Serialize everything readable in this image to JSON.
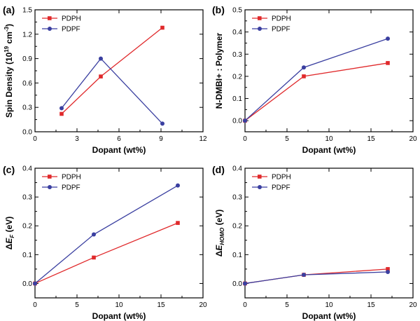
{
  "colors": {
    "PDPH": "#e0292b",
    "PDPF": "#3a3fa0",
    "axis": "#000000"
  },
  "chart_data": [
    {
      "panel": "(a)",
      "type": "line",
      "xlabel": "Dopant (wt%)",
      "ylabel": "Spin Density (10^19 cm^-3)",
      "ylabel_parts": {
        "pre": "Spin Density (10",
        "sup1": "19",
        "mid": " cm",
        "sup2": "-3",
        "post": ")"
      },
      "xlim": [
        0,
        12
      ],
      "ylim": [
        0,
        1.5
      ],
      "xticks": [
        0,
        3,
        6,
        9,
        12
      ],
      "xtick_labels": [
        "0",
        "3",
        "6",
        "9",
        "12"
      ],
      "yticks": [
        0,
        0.3,
        0.6,
        0.9,
        1.2,
        1.5
      ],
      "ytick_labels": [
        "0.0",
        "0.3",
        "0.6",
        "0.9",
        "1.2",
        "1.5"
      ],
      "legend": "top-left",
      "series": [
        {
          "name": "PDPH",
          "marker": "square",
          "x": [
            1.9,
            4.7,
            9.1
          ],
          "y": [
            0.22,
            0.68,
            1.28
          ]
        },
        {
          "name": "PDPF",
          "marker": "circle",
          "x": [
            1.9,
            4.7,
            9.1
          ],
          "y": [
            0.29,
            0.9,
            0.1
          ]
        }
      ]
    },
    {
      "panel": "(b)",
      "type": "line",
      "xlabel": "Dopant (wt%)",
      "ylabel": "N-DMBI+ : Polymer",
      "xlim": [
        0,
        20
      ],
      "ylim": [
        -0.05,
        0.5
      ],
      "xticks": [
        0,
        5,
        10,
        15,
        20
      ],
      "xtick_labels": [
        "0",
        "5",
        "10",
        "15",
        "20"
      ],
      "yticks": [
        0,
        0.1,
        0.2,
        0.3,
        0.4,
        0.5
      ],
      "ytick_labels": [
        "0.0",
        "0.1",
        "0.2",
        "0.3",
        "0.4",
        "0.5"
      ],
      "legend": "top-left",
      "series": [
        {
          "name": "PDPH",
          "marker": "square",
          "x": [
            0,
            7,
            17
          ],
          "y": [
            0,
            0.2,
            0.26
          ]
        },
        {
          "name": "PDPF",
          "marker": "circle",
          "x": [
            0,
            7,
            17
          ],
          "y": [
            0,
            0.24,
            0.37
          ]
        }
      ]
    },
    {
      "panel": "(c)",
      "type": "line",
      "xlabel": "Dopant (wt%)",
      "ylabel": "ΔE_F (eV)",
      "ylabel_parts": {
        "pre": "Δ",
        "var": "E",
        "sub": "F",
        "post": " (eV)"
      },
      "xlim": [
        0,
        20
      ],
      "ylim": [
        -0.05,
        0.4
      ],
      "xticks": [
        0,
        5,
        10,
        15,
        20
      ],
      "xtick_labels": [
        "0",
        "5",
        "10",
        "15",
        "20"
      ],
      "yticks": [
        0,
        0.1,
        0.2,
        0.3,
        0.4
      ],
      "ytick_labels": [
        "0.0",
        "0.1",
        "0.2",
        "0.3",
        "0.4"
      ],
      "legend": "top-left",
      "series": [
        {
          "name": "PDPH",
          "marker": "square",
          "x": [
            0,
            7,
            17
          ],
          "y": [
            0,
            0.09,
            0.21
          ]
        },
        {
          "name": "PDPF",
          "marker": "circle",
          "x": [
            0,
            7,
            17
          ],
          "y": [
            0,
            0.17,
            0.34
          ]
        }
      ]
    },
    {
      "panel": "(d)",
      "type": "line",
      "xlabel": "Dopant (wt%)",
      "ylabel": "ΔE_HOMO (eV)",
      "ylabel_parts": {
        "pre": "Δ",
        "var": "E",
        "sub": "HOMO",
        "post": " (eV)"
      },
      "xlim": [
        0,
        20
      ],
      "ylim": [
        -0.05,
        0.4
      ],
      "xticks": [
        0,
        5,
        10,
        15,
        20
      ],
      "xtick_labels": [
        "0",
        "5",
        "10",
        "15",
        "20"
      ],
      "yticks": [
        0,
        0.1,
        0.2,
        0.3,
        0.4
      ],
      "ytick_labels": [
        "0.0",
        "0.1",
        "0.2",
        "0.3",
        "0.4"
      ],
      "legend": "top-left",
      "series": [
        {
          "name": "PDPH",
          "marker": "square",
          "x": [
            0,
            7,
            17
          ],
          "y": [
            0,
            0.03,
            0.05
          ]
        },
        {
          "name": "PDPF",
          "marker": "circle",
          "x": [
            0,
            7,
            17
          ],
          "y": [
            0,
            0.03,
            0.04
          ]
        }
      ]
    }
  ]
}
